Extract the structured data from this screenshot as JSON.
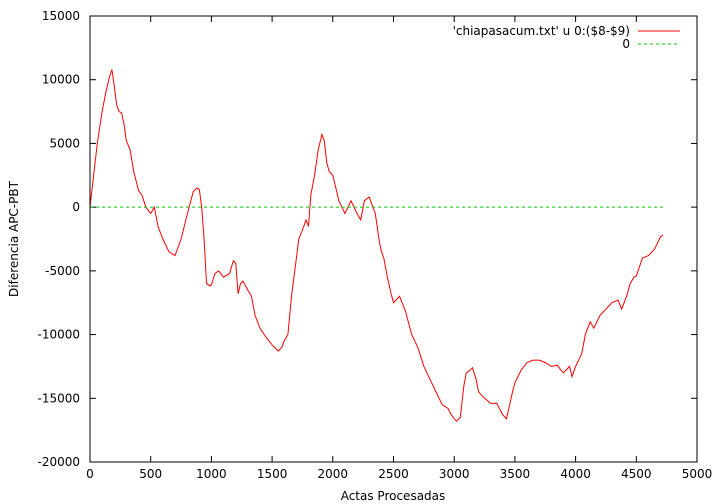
{
  "chart_data": {
    "type": "line",
    "xlabel": "Actas Procesadas",
    "ylabel": "Diferencia APC-PBT",
    "xlim": [
      0,
      5000
    ],
    "ylim": [
      -20000,
      15000
    ],
    "x_ticks": [
      0,
      500,
      1000,
      1500,
      2000,
      2500,
      3000,
      3500,
      4000,
      4500,
      5000
    ],
    "y_ticks": [
      -20000,
      -15000,
      -10000,
      -5000,
      0,
      5000,
      10000,
      15000
    ],
    "grid": false,
    "legend_position": "top-right",
    "series": [
      {
        "name": "'chiapasacum.txt' u 0:($8-$9)",
        "color": "#ff0000",
        "x": [
          0,
          30,
          60,
          100,
          130,
          160,
          180,
          200,
          220,
          240,
          260,
          280,
          300,
          330,
          360,
          400,
          430,
          460,
          500,
          530,
          560,
          600,
          650,
          700,
          750,
          800,
          850,
          880,
          900,
          920,
          940,
          960,
          990,
          1000,
          1030,
          1060,
          1100,
          1150,
          1180,
          1200,
          1220,
          1240,
          1260,
          1300,
          1330,
          1360,
          1400,
          1450,
          1500,
          1550,
          1580,
          1600,
          1630,
          1660,
          1700,
          1720,
          1750,
          1780,
          1800,
          1820,
          1850,
          1880,
          1910,
          1930,
          1950,
          1970,
          2000,
          2050,
          2100,
          2150,
          2200,
          2230,
          2260,
          2300,
          2330,
          2350,
          2380,
          2400,
          2420,
          2450,
          2480,
          2500,
          2550,
          2600,
          2650,
          2700,
          2750,
          2800,
          2850,
          2900,
          2950,
          2970,
          3000,
          3020,
          3050,
          3080,
          3100,
          3130,
          3150,
          3180,
          3200,
          3250,
          3300,
          3350,
          3400,
          3430,
          3450,
          3480,
          3500,
          3550,
          3600,
          3650,
          3700,
          3750,
          3800,
          3850,
          3880,
          3900,
          3950,
          3970,
          4000,
          4050,
          4080,
          4100,
          4120,
          4150,
          4200,
          4250,
          4300,
          4350,
          4380,
          4420,
          4450,
          4480,
          4500,
          4550,
          4600,
          4650,
          4700,
          4720
        ],
        "y": [
          0,
          2500,
          5000,
          7500,
          9000,
          10200,
          10800,
          9500,
          8000,
          7500,
          7400,
          6500,
          5200,
          4500,
          2800,
          1300,
          900,
          0,
          -500,
          0,
          -1500,
          -2500,
          -3500,
          -3800,
          -2500,
          -600,
          1200,
          1500,
          1400,
          0,
          -2500,
          -6000,
          -6200,
          -6100,
          -5200,
          -5000,
          -5500,
          -5200,
          -4200,
          -4400,
          -6800,
          -6000,
          -5800,
          -6500,
          -7000,
          -8500,
          -9500,
          -10200,
          -10800,
          -11300,
          -11000,
          -10500,
          -10000,
          -7000,
          -4000,
          -2500,
          -1800,
          -1000,
          -1500,
          1000,
          2500,
          4500,
          5700,
          5200,
          3500,
          2800,
          2500,
          500,
          -500,
          500,
          -500,
          -1000,
          500,
          800,
          0,
          -500,
          -2500,
          -3500,
          -4000,
          -5500,
          -6800,
          -7500,
          -7000,
          -8200,
          -10000,
          -11000,
          -12500,
          -13500,
          -14500,
          -15500,
          -15800,
          -16200,
          -16600,
          -16800,
          -16500,
          -14000,
          -13000,
          -12800,
          -12600,
          -13500,
          -14500,
          -15000,
          -15400,
          -15400,
          -16300,
          -16600,
          -15800,
          -14500,
          -13800,
          -12800,
          -12200,
          -12000,
          -12000,
          -12200,
          -12500,
          -12400,
          -12800,
          -13000,
          -12500,
          -13300,
          -12500,
          -11500,
          -10000,
          -9500,
          -9000,
          -9500,
          -8500,
          -8000,
          -7500,
          -7300,
          -8000,
          -7000,
          -6000,
          -5500,
          -5400,
          -4000,
          -3800,
          -3300,
          -2300,
          -2200
        ]
      },
      {
        "name": "0",
        "color": "#00cc00",
        "dashed": true,
        "x": [
          0,
          4720
        ],
        "y": [
          0,
          0
        ]
      }
    ]
  }
}
